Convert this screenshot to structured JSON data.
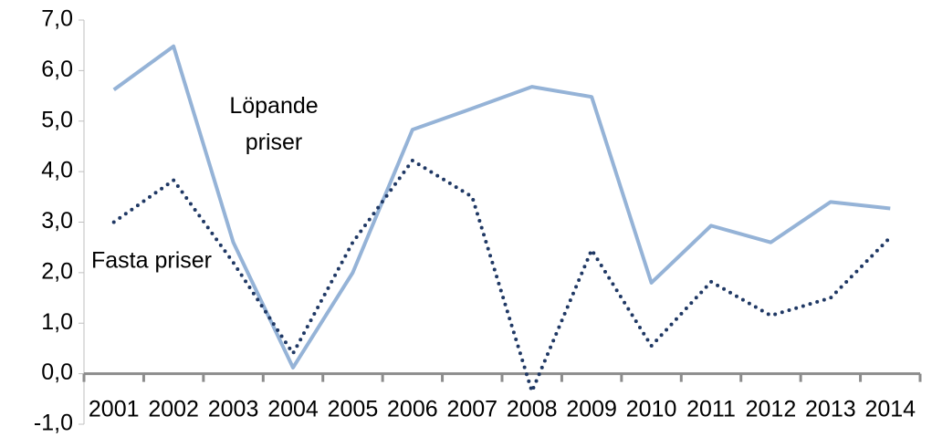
{
  "chart_data": {
    "type": "line",
    "categories": [
      "2001",
      "2002",
      "2003",
      "2004",
      "2005",
      "2006",
      "2007",
      "2008",
      "2009",
      "2010",
      "2011",
      "2012",
      "2013",
      "2014"
    ],
    "series": [
      {
        "name": "Löpande priser",
        "color": "#95b3d7",
        "style": "solid",
        "values": [
          5.62,
          6.48,
          2.6,
          0.12,
          2.0,
          4.83,
          5.25,
          5.68,
          5.48,
          1.8,
          2.93,
          2.6,
          3.4,
          3.27
        ]
      },
      {
        "name": "Fasta priser",
        "color": "#1f3864",
        "style": "dotted",
        "values": [
          3.0,
          3.83,
          2.2,
          0.4,
          2.6,
          4.22,
          3.5,
          -0.35,
          2.45,
          0.55,
          1.82,
          1.15,
          1.5,
          2.7
        ]
      }
    ],
    "ylim": [
      -1,
      7
    ],
    "yticks": [
      {
        "value": -1,
        "label": "-1,0"
      },
      {
        "value": 0,
        "label": "0,0"
      },
      {
        "value": 1,
        "label": "1,0"
      },
      {
        "value": 2,
        "label": "2,0"
      },
      {
        "value": 3,
        "label": "3,0"
      },
      {
        "value": 4,
        "label": "4,0"
      },
      {
        "value": 5,
        "label": "5,0"
      },
      {
        "value": 6,
        "label": "6,0"
      },
      {
        "value": 7,
        "label": "7,0"
      }
    ],
    "grid": false,
    "legend": false
  }
}
